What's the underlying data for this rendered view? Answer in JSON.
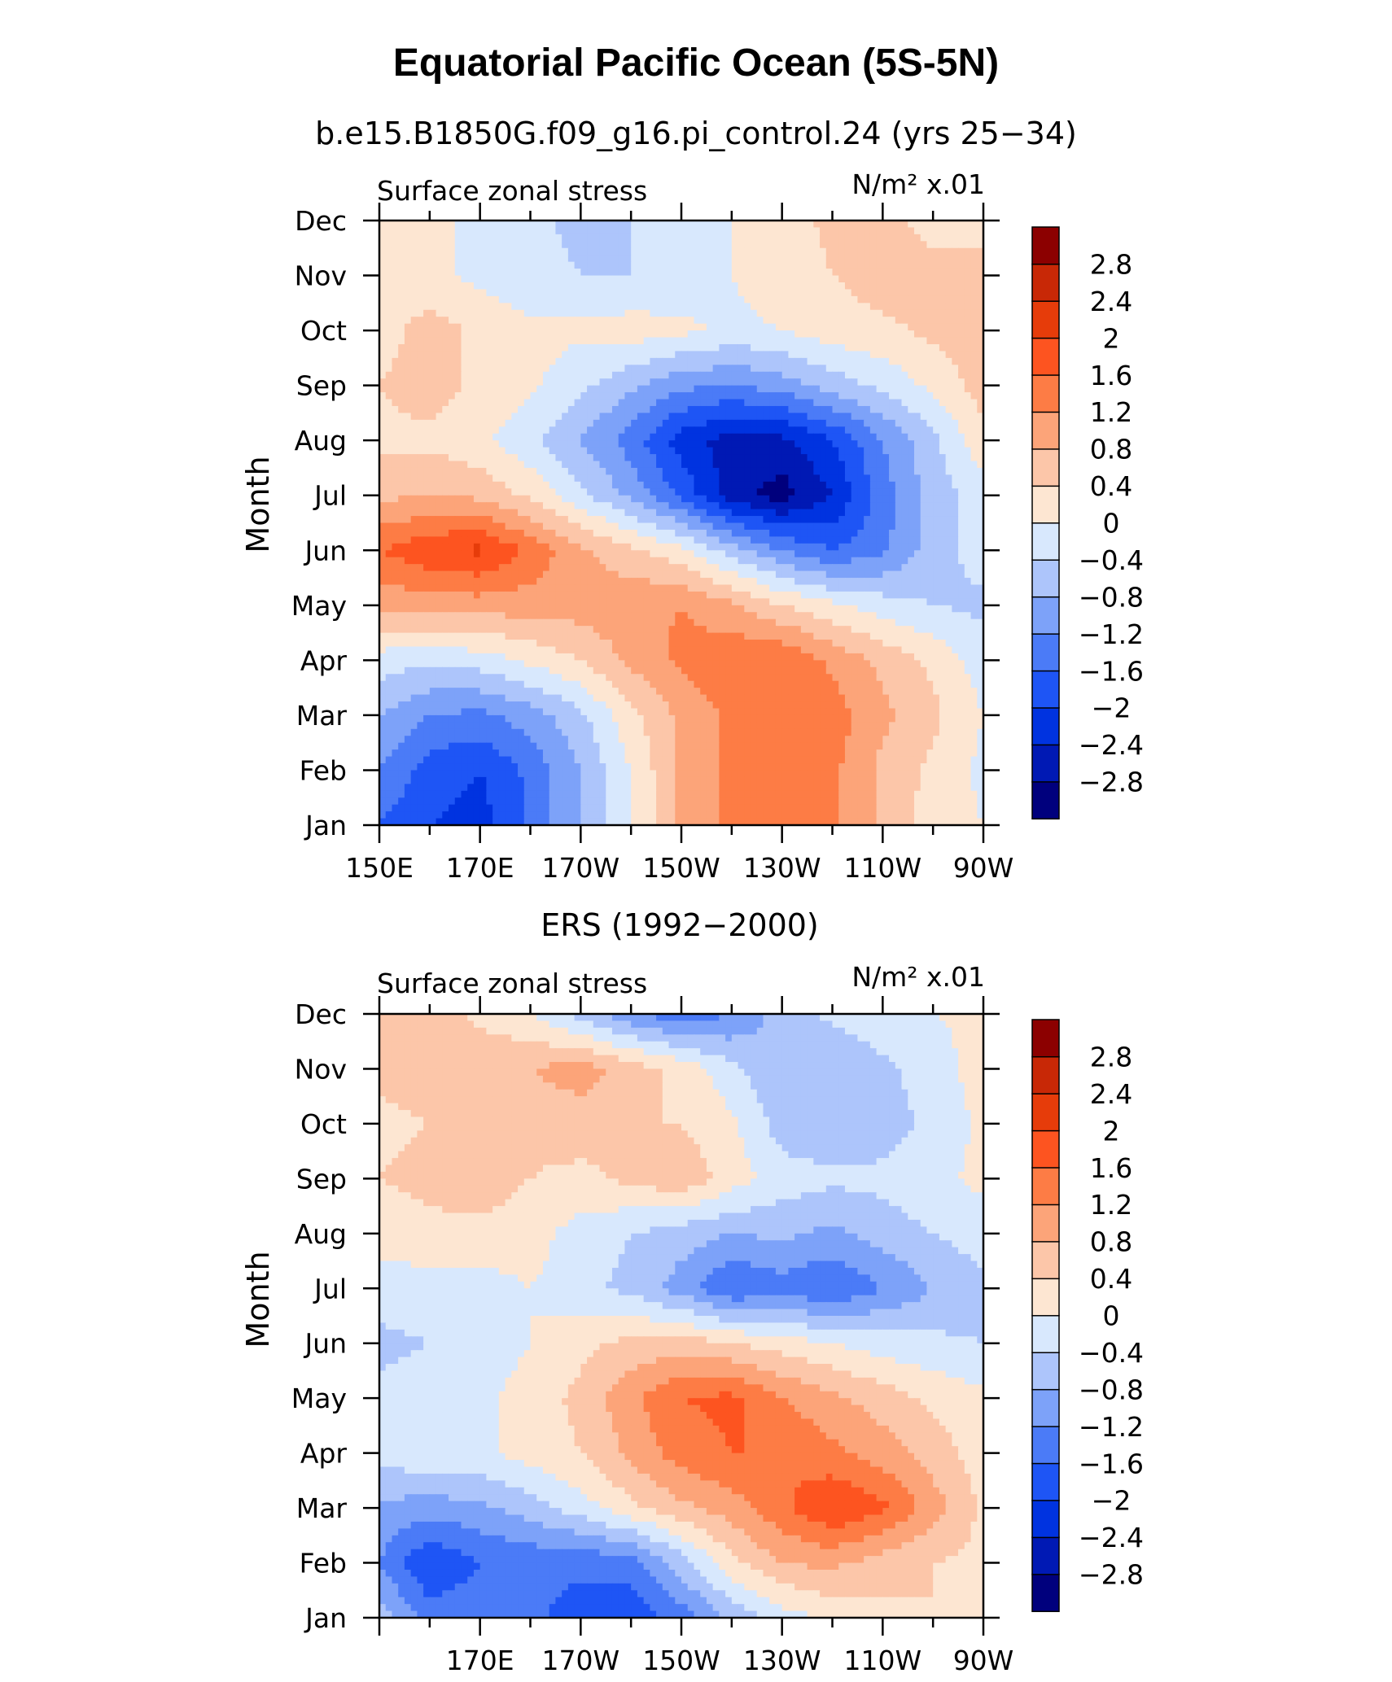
{
  "title": "Equatorial Pacific Ocean (5S-5N)",
  "months": [
    "Jan",
    "Feb",
    "Mar",
    "Apr",
    "May",
    "Jun",
    "Jul",
    "Aug",
    "Sep",
    "Oct",
    "Nov",
    "Dec"
  ],
  "colorbar": {
    "levels": [
      -2.8,
      -2.4,
      -2,
      -1.6,
      -1.2,
      -0.8,
      -0.4,
      0,
      0.4,
      0.8,
      1.2,
      1.6,
      2,
      2.4,
      2.8
    ],
    "labels": [
      "2.8",
      "2.4",
      "2",
      "1.6",
      "1.2",
      "0.8",
      "0.4",
      "0",
      "−0.4",
      "−0.8",
      "−1.2",
      "−1.6",
      "−2",
      "−2.4",
      "−2.8"
    ],
    "colors": [
      "#00007d",
      "#0019b4",
      "#0033e0",
      "#1e55f5",
      "#4b7bf7",
      "#7da2f9",
      "#adc5fb",
      "#d8e8fd",
      "#fde6d2",
      "#fcc6a9",
      "#fca479",
      "#fd7c45",
      "#fd5420",
      "#e63c0a",
      "#c82806",
      "#8c0000"
    ]
  },
  "chart_data": [
    {
      "type": "heatmap",
      "panel_title": "b.e15.B1850G.f09_g16.pi_control.24 (yrs 25−34)",
      "left_label": "Surface zonal stress",
      "right_label": "N/m² x.01",
      "ylabel": "Month",
      "x_ticklabels": [
        "150E",
        "170E",
        "170W",
        "150W",
        "130W",
        "110W",
        "90W"
      ],
      "x_ticks_deg": [
        150,
        170,
        190,
        210,
        230,
        250,
        270
      ],
      "xlim": [
        150,
        270
      ],
      "ylim": [
        1,
        12
      ],
      "y_ticklabels": [
        "Jan",
        "Feb",
        "Mar",
        "Apr",
        "May",
        "Jun",
        "Jul",
        "Aug",
        "Sep",
        "Oct",
        "Nov",
        "Dec"
      ],
      "x_lon": [
        150,
        160,
        170,
        180,
        190,
        200,
        210,
        220,
        230,
        240,
        250,
        260,
        270
      ],
      "z": [
        [
          -1.6,
          -2.0,
          -2.2,
          -1.5,
          -0.8,
          0.0,
          0.9,
          1.3,
          1.5,
          1.3,
          0.7,
          0.2,
          0.0
        ],
        [
          -1.2,
          -1.8,
          -2.0,
          -1.5,
          -0.8,
          0.0,
          0.9,
          1.3,
          1.4,
          1.3,
          0.7,
          0.3,
          -0.1
        ],
        [
          -0.8,
          -1.2,
          -1.3,
          -1.0,
          -0.5,
          0.3,
          0.9,
          1.3,
          1.6,
          1.4,
          0.9,
          0.5,
          0.0
        ],
        [
          -0.2,
          -0.3,
          -0.2,
          0.1,
          0.4,
          0.9,
          1.3,
          1.5,
          1.6,
          1.1,
          0.7,
          0.3,
          -0.2
        ],
        [
          0.9,
          1.0,
          1.0,
          1.0,
          1.0,
          1.1,
          1.2,
          0.9,
          0.4,
          0.1,
          -0.2,
          -0.4,
          -0.5
        ],
        [
          1.6,
          1.9,
          2.1,
          1.5,
          0.9,
          0.5,
          0.1,
          -0.6,
          -1.2,
          -1.6,
          -1.3,
          -0.6,
          -0.2
        ],
        [
          0.7,
          0.8,
          0.7,
          0.3,
          -0.3,
          -0.9,
          -1.7,
          -2.6,
          -3.0,
          -2.4,
          -1.4,
          -0.6,
          -0.2
        ],
        [
          0.3,
          0.3,
          0.1,
          -0.3,
          -0.8,
          -1.4,
          -2.2,
          -2.6,
          -2.5,
          -2.0,
          -1.2,
          -0.5,
          0.3
        ],
        [
          0.4,
          0.6,
          0.3,
          0.1,
          -0.3,
          -0.7,
          -1.1,
          -1.2,
          -1.0,
          -0.6,
          -0.3,
          0.1,
          0.6
        ],
        [
          0.2,
          0.6,
          0.3,
          0.1,
          0.1,
          0.2,
          0.1,
          -0.1,
          0.0,
          0.2,
          0.3,
          0.5,
          0.6
        ],
        [
          0.2,
          0.1,
          -0.1,
          -0.3,
          -0.4,
          -0.4,
          -0.3,
          0.0,
          0.2,
          0.4,
          0.6,
          0.5,
          0.6
        ],
        [
          0.2,
          0.1,
          -0.1,
          -0.3,
          -0.5,
          -0.4,
          -0.2,
          0.0,
          0.2,
          0.5,
          0.5,
          0.3,
          0.2
        ]
      ]
    },
    {
      "type": "heatmap",
      "panel_title": "ERS (1992−2000)",
      "left_label": "Surface zonal stress",
      "right_label": "N/m² x.01",
      "ylabel": "Month",
      "x_ticklabels": [
        "170E",
        "170W",
        "150W",
        "130W",
        "110W",
        "90W"
      ],
      "x_ticks_deg": [
        170,
        190,
        210,
        230,
        250,
        270
      ],
      "xlim": [
        150,
        270
      ],
      "ylim": [
        1,
        12
      ],
      "y_ticklabels": [
        "Jan",
        "Feb",
        "Mar",
        "Apr",
        "May",
        "Jun",
        "Jul",
        "Aug",
        "Sep",
        "Oct",
        "Nov",
        "Dec"
      ],
      "x_lon": [
        150,
        160,
        170,
        180,
        190,
        200,
        210,
        220,
        230,
        240,
        250,
        260,
        270
      ],
      "z": [
        [
          -0.6,
          -1.4,
          -1.3,
          -1.5,
          -1.8,
          -1.9,
          -1.4,
          -0.7,
          -0.2,
          0.1,
          0.3,
          0.4,
          0.4
        ],
        [
          -1.2,
          -2.0,
          -1.6,
          -1.5,
          -1.5,
          -1.4,
          -0.6,
          0.3,
          0.8,
          0.9,
          0.6,
          0.4,
          0.3
        ],
        [
          -0.9,
          -1.0,
          -0.9,
          -0.6,
          -0.2,
          0.3,
          0.7,
          1.0,
          1.5,
          2.0,
          1.7,
          1.0,
          0.3
        ],
        [
          -0.2,
          -0.1,
          -0.1,
          0.2,
          0.4,
          0.9,
          1.4,
          1.6,
          1.6,
          1.3,
          1.0,
          0.6,
          0.2
        ],
        [
          -0.3,
          -0.2,
          -0.1,
          0.2,
          0.5,
          1.1,
          1.6,
          1.7,
          1.2,
          0.9,
          0.6,
          0.3,
          0.1
        ],
        [
          -0.5,
          -0.4,
          -0.3,
          0.0,
          0.3,
          0.5,
          0.6,
          0.4,
          0.2,
          0.0,
          -0.2,
          -0.3,
          -0.4
        ],
        [
          -0.2,
          -0.2,
          -0.2,
          0.0,
          -0.3,
          -0.5,
          -1.0,
          -1.6,
          -1.4,
          -1.6,
          -1.2,
          -0.8,
          -0.5
        ],
        [
          0.2,
          0.3,
          0.3,
          0.2,
          -0.2,
          -0.4,
          -0.6,
          -0.8,
          -0.7,
          -0.9,
          -0.6,
          -0.4,
          -0.2
        ],
        [
          0.4,
          0.5,
          0.6,
          0.4,
          0.3,
          0.5,
          0.7,
          0.2,
          -0.2,
          -0.3,
          -0.3,
          -0.1,
          0.1
        ],
        [
          0.3,
          0.4,
          0.5,
          0.5,
          0.6,
          0.4,
          0.4,
          0.1,
          -0.6,
          -0.8,
          -0.6,
          -0.3,
          0.1
        ],
        [
          0.5,
          0.6,
          0.7,
          0.8,
          1.0,
          0.6,
          0.3,
          -0.3,
          -0.8,
          -0.8,
          -0.5,
          -0.2,
          0.2
        ],
        [
          0.6,
          0.6,
          0.3,
          0.0,
          -0.6,
          -1.1,
          -1.5,
          -1.2,
          -0.6,
          -0.3,
          -0.1,
          0.0,
          0.1
        ]
      ]
    }
  ]
}
